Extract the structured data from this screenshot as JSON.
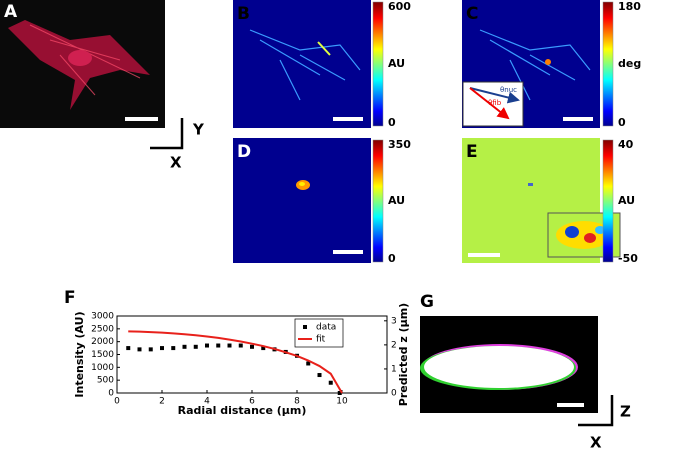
{
  "panels": {
    "A": {
      "label": "A"
    },
    "axes_top": {
      "y": "Y",
      "x": "X"
    },
    "B": {
      "label": "B",
      "colorbar": {
        "max": 600,
        "unit": "AU",
        "min": 0
      }
    },
    "C": {
      "label": "C",
      "colorbar": {
        "max": 180,
        "unit": "deg",
        "min": 0
      },
      "inset": {
        "nuc": "θnuc",
        "fib": "θfib"
      }
    },
    "D": {
      "label": "D",
      "colorbar": {
        "max": 350,
        "unit": "AU",
        "min": 0
      }
    },
    "E": {
      "label": "E",
      "colorbar": {
        "max": 40,
        "unit": "AU",
        "min": -50
      }
    },
    "G": {
      "label": "G"
    },
    "axes_bottom": {
      "z": "Z",
      "x": "X"
    }
  },
  "chart_data": {
    "type": "line",
    "label": "F",
    "x_label": "Radial distance (μm)",
    "y_label": "Intensity (AU)",
    "y2_label": "Predicted z (μm)",
    "xlim": [
      0,
      12
    ],
    "xticks": [
      0,
      2,
      4,
      6,
      8,
      10
    ],
    "ylim": [
      0,
      3000
    ],
    "yticks": [
      0,
      500,
      1000,
      1500,
      2000,
      2500,
      3000
    ],
    "y2lim": [
      0,
      3.2
    ],
    "y2ticks": [
      0,
      1,
      2,
      3
    ],
    "legend": "upper right",
    "series": [
      {
        "name": "data",
        "color": "#000000",
        "marker": "square",
        "x": [
          0.5,
          1,
          1.5,
          2,
          2.5,
          3,
          3.5,
          4,
          4.5,
          5,
          5.5,
          6,
          6.5,
          7,
          7.5,
          8,
          8.5,
          9,
          9.5,
          9.9
        ],
        "values": [
          1750,
          1700,
          1700,
          1750,
          1750,
          1800,
          1800,
          1850,
          1850,
          1850,
          1850,
          1800,
          1750,
          1700,
          1600,
          1450,
          1150,
          700,
          400,
          0
        ]
      },
      {
        "name": "fit",
        "color": "#e8211b",
        "axis": "y2",
        "x": [
          0.5,
          1,
          1.5,
          2,
          2.5,
          3,
          3.5,
          4,
          4.5,
          5,
          5.5,
          6,
          6.5,
          7,
          7.5,
          8,
          8.5,
          9,
          9.5,
          10
        ],
        "values": [
          2.56,
          2.55,
          2.53,
          2.51,
          2.48,
          2.44,
          2.4,
          2.35,
          2.29,
          2.22,
          2.14,
          2.05,
          1.95,
          1.83,
          1.69,
          1.54,
          1.35,
          1.12,
          0.8,
          0
        ]
      }
    ]
  }
}
